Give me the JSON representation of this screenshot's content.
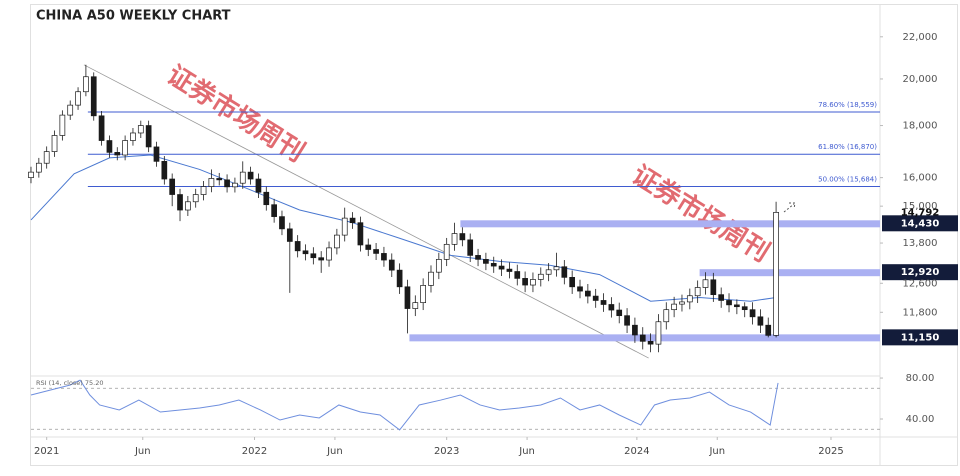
{
  "chart_data": {
    "type": "candlestick",
    "title": "CHINA A50 WEEKLY CHART",
    "log_scale": true,
    "up_color": "#ffffff",
    "down_color": "#1a1a1a",
    "x": [
      2020.92,
      2020.96,
      2021.0,
      2021.04,
      2021.08,
      2021.12,
      2021.16,
      2021.2,
      2021.24,
      2021.28,
      2021.32,
      2021.36,
      2021.4,
      2021.44,
      2021.48,
      2021.52,
      2021.56,
      2021.6,
      2021.64,
      2021.68,
      2021.72,
      2021.76,
      2021.8,
      2021.84,
      2021.88,
      2021.92,
      2021.96,
      2022.0,
      2022.04,
      2022.08,
      2022.12,
      2022.16,
      2022.2,
      2022.24,
      2022.28,
      2022.32,
      2022.36,
      2022.4,
      2022.44,
      2022.48,
      2022.52,
      2022.56,
      2022.6,
      2022.64,
      2022.68,
      2022.72,
      2022.76,
      2022.8,
      2022.84,
      2022.88,
      2022.92,
      2022.96,
      2023.0,
      2023.04,
      2023.08,
      2023.12,
      2023.16,
      2023.2,
      2023.24,
      2023.28,
      2023.32,
      2023.36,
      2023.4,
      2023.44,
      2023.48,
      2023.52,
      2023.56,
      2023.6,
      2023.64,
      2023.68,
      2023.72,
      2023.76,
      2023.8,
      2023.84,
      2023.88,
      2023.92,
      2023.96,
      2024.0,
      2024.04,
      2024.08,
      2024.12,
      2024.16,
      2024.2,
      2024.24,
      2024.28,
      2024.32,
      2024.36,
      2024.4,
      2024.44,
      2024.48,
      2024.52,
      2024.56,
      2024.6,
      2024.64,
      2024.68,
      2024.72
    ],
    "open": [
      16000,
      16200,
      16530,
      16970,
      17600,
      18430,
      18850,
      19430,
      20100,
      18400,
      17400,
      16940,
      16840,
      17400,
      17700,
      18000,
      17150,
      16600,
      15950,
      15400,
      14870,
      15150,
      15400,
      15680,
      15970,
      15920,
      15670,
      15800,
      16200,
      15950,
      15480,
      15050,
      14650,
      14250,
      13850,
      13560,
      13470,
      13350,
      13280,
      13650,
      14050,
      14600,
      14450,
      13740,
      13600,
      13480,
      13280,
      12980,
      12500,
      11900,
      12060,
      12540,
      12920,
      13300,
      13760,
      14100,
      13900,
      13420,
      13300,
      13180,
      13100,
      13010,
      12940,
      12740,
      12550,
      12710,
      12860,
      12990,
      13080,
      12770,
      12500,
      12380,
      12240,
      12120,
      12010,
      11860,
      11710,
      11460,
      11210,
      11050,
      10980,
      11550,
      11870,
      12020,
      12080,
      12250,
      12480,
      12700,
      12280,
      12120,
      12000,
      11950,
      11870,
      11680,
      11460,
      11200
    ],
    "high": [
      16400,
      16730,
      17170,
      17800,
      18630,
      19050,
      19630,
      20650,
      20300,
      18600,
      17600,
      17140,
      17600,
      17900,
      18200,
      18200,
      17350,
      16800,
      16150,
      15600,
      15350,
      15600,
      15880,
      16300,
      16170,
      16120,
      16000,
      16600,
      16400,
      16150,
      15680,
      15250,
      14850,
      14450,
      14050,
      13760,
      13670,
      13550,
      13850,
      14250,
      14950,
      14800,
      14650,
      13940,
      13800,
      13680,
      13480,
      13180,
      12700,
      12260,
      12740,
      13120,
      13500,
      13960,
      14450,
      14300,
      14100,
      13620,
      13500,
      13380,
      13300,
      13210,
      13140,
      12940,
      12910,
      13060,
      13190,
      13500,
      13280,
      12970,
      12700,
      12580,
      12440,
      12320,
      12210,
      12060,
      11910,
      11660,
      11410,
      11250,
      11750,
      12070,
      12220,
      12280,
      12450,
      12680,
      12920,
      12900,
      12480,
      12320,
      12150,
      12070,
      12070,
      11880,
      11660,
      15150
    ],
    "low": [
      15800,
      16000,
      16330,
      16770,
      17400,
      18230,
      18650,
      19230,
      18200,
      17200,
      16740,
      16640,
      16640,
      17200,
      17500,
      16950,
      16400,
      15750,
      15000,
      14500,
      14670,
      14950,
      15200,
      15480,
      15720,
      15470,
      15470,
      15600,
      15750,
      15280,
      14850,
      14450,
      14050,
      12330,
      13360,
      13270,
      13150,
      12900,
      13080,
      13450,
      13850,
      14250,
      13540,
      13400,
      13280,
      13080,
      12780,
      12300,
      11250,
      11700,
      11860,
      12340,
      12720,
      13100,
      13560,
      13700,
      13220,
      13100,
      12980,
      12900,
      12810,
      12740,
      12540,
      12350,
      12350,
      12510,
      12660,
      12790,
      12570,
      12300,
      12180,
      12040,
      11920,
      11810,
      11660,
      11510,
      11260,
      11010,
      10850,
      10780,
      10780,
      11350,
      11670,
      11820,
      11880,
      12050,
      12280,
      12080,
      11920,
      11800,
      11750,
      11670,
      11480,
      11260,
      11150,
      11150
    ],
    "close": [
      16200,
      16530,
      16970,
      17600,
      18430,
      18850,
      19430,
      20100,
      18400,
      17400,
      16940,
      16840,
      17400,
      17700,
      18000,
      17150,
      16600,
      15950,
      15400,
      14870,
      15150,
      15400,
      15680,
      15970,
      15920,
      15670,
      15800,
      16200,
      15950,
      15480,
      15050,
      14650,
      14250,
      13850,
      13560,
      13470,
      13350,
      13280,
      13650,
      14050,
      14600,
      14450,
      13740,
      13600,
      13480,
      13280,
      12980,
      12500,
      11900,
      12060,
      12540,
      12920,
      13300,
      13760,
      14100,
      13900,
      13420,
      13300,
      13180,
      13100,
      13010,
      12940,
      12740,
      12550,
      12710,
      12860,
      12990,
      13080,
      12770,
      12500,
      12380,
      12240,
      12120,
      12010,
      11860,
      11710,
      11460,
      11210,
      11050,
      10980,
      11550,
      11870,
      12020,
      12080,
      12250,
      12480,
      12700,
      12280,
      12120,
      12000,
      11950,
      11870,
      11680,
      11460,
      11200,
      14792
    ],
    "xlim": [
      2020.92,
      2025.25
    ],
    "xticks": [
      {
        "value": 2021.0,
        "label": "2021"
      },
      {
        "value": 2021.49,
        "label": "Jun"
      },
      {
        "value": 2022.06,
        "label": "2022"
      },
      {
        "value": 2022.47,
        "label": "Jun"
      },
      {
        "value": 2023.04,
        "label": "2023"
      },
      {
        "value": 2023.45,
        "label": "Jun"
      },
      {
        "value": 2024.01,
        "label": "2024"
      },
      {
        "value": 2024.42,
        "label": "Jun"
      },
      {
        "value": 2025.0,
        "label": "2025"
      }
    ],
    "ylim": [
      10240,
      23640
    ],
    "yticks": [
      {
        "value": 22000,
        "label": "22,000"
      },
      {
        "value": 20000,
        "label": "20,000"
      },
      {
        "value": 18000,
        "label": "18,000"
      },
      {
        "value": 16000,
        "label": "16,000"
      },
      {
        "value": 15000,
        "label": "15,000"
      },
      {
        "value": 13800,
        "label": "13,800"
      },
      {
        "value": 12600,
        "label": "12,600"
      },
      {
        "value": 11800,
        "label": "11,800"
      }
    ],
    "ma": {
      "color": "#4a78d0",
      "x": [
        2020.92,
        2021.14,
        2021.32,
        2021.53,
        2021.78,
        2022.04,
        2022.29,
        2022.55,
        2022.8,
        2023.06,
        2023.31,
        2023.57,
        2023.82,
        2024.08,
        2024.33,
        2024.59,
        2024.72
      ],
      "values": [
        14540,
        16140,
        16730,
        16840,
        16300,
        15560,
        14870,
        14470,
        13950,
        13420,
        13240,
        13120,
        12850,
        12100,
        12200,
        12100,
        12200
      ]
    },
    "levels": [
      {
        "value": 18559,
        "label": "78.60% (18,559)",
        "from": 2021.21
      },
      {
        "value": 16870,
        "label": "61.80% (16,870)",
        "from": 2021.21
      },
      {
        "value": 15684,
        "label": "50.00% (15,684)",
        "from": 2021.21
      }
    ],
    "level_color": "#3f5bd0",
    "zones": [
      {
        "value": 14430,
        "label": "14,430",
        "from": 2023.11
      },
      {
        "value": 12920,
        "label": "12,920",
        "from": 2024.33
      },
      {
        "value": 11150,
        "label": "11,150",
        "from": 2022.85
      }
    ],
    "zone_color": "#aab0f2",
    "last": {
      "value": 14792,
      "label": "14,792"
    },
    "trendline": {
      "x": [
        2021.19,
        2024.07
      ],
      "y": [
        20650,
        10640
      ]
    },
    "rsi": {
      "label": "RSI (14, close) 75.20",
      "color": "#6f8fde",
      "x": [
        2020.92,
        2021.02,
        2021.12,
        2021.17,
        2021.22,
        2021.27,
        2021.37,
        2021.47,
        2021.58,
        2021.68,
        2021.78,
        2021.88,
        2021.98,
        2022.09,
        2022.19,
        2022.29,
        2022.39,
        2022.49,
        2022.6,
        2022.7,
        2022.8,
        2022.9,
        2023.01,
        2023.11,
        2023.21,
        2023.31,
        2023.41,
        2023.52,
        2023.62,
        2023.72,
        2023.82,
        2023.92,
        2024.03,
        2024.1,
        2024.18,
        2024.28,
        2024.38,
        2024.48,
        2024.59,
        2024.69,
        2024.73
      ],
      "values": [
        63.4,
        68.3,
        73.2,
        78,
        63.4,
        53.7,
        48.8,
        58.5,
        46.8,
        48.8,
        50.7,
        53.7,
        58.5,
        48.8,
        39,
        43.9,
        41,
        53.7,
        46.8,
        43.9,
        29.3,
        53.7,
        58.5,
        63.4,
        53.7,
        48.8,
        50.7,
        53.7,
        60.5,
        48.8,
        53.7,
        43.9,
        34.1,
        53.7,
        58.5,
        60.5,
        66.3,
        53.7,
        46.8,
        34.1,
        75.2
      ],
      "ylim": [
        22.4,
        82
      ],
      "yticks": [
        {
          "value": 80,
          "label": "80.00"
        },
        {
          "value": 40,
          "label": "40.00"
        }
      ],
      "levels": [
        70,
        30
      ]
    },
    "watermark": "证券市场周刊"
  }
}
